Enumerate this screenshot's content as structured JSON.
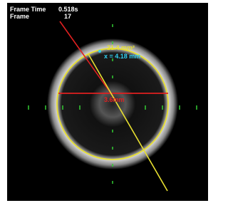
{
  "overlay": {
    "frame_time_label": "Frame Time",
    "frame_time": "0.518s",
    "frame_label": "Frame",
    "frame": "17"
  },
  "measurements": {
    "area": "21.4 mm²",
    "diameter": "x = 4.18 mm",
    "center_label": "3.6mm"
  }
}
